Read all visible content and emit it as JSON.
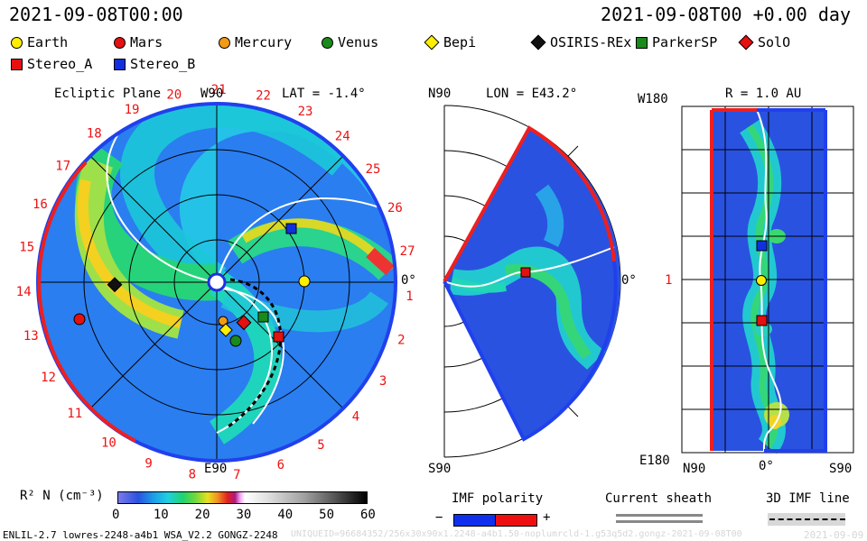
{
  "header": {
    "date_left": "2021-09-08T00:00",
    "date_right": "2021-09-08T00 +0.00 day"
  },
  "legend": [
    {
      "name": "Earth",
      "shape": "circle",
      "color": "#ffee00"
    },
    {
      "name": "Mars",
      "shape": "circle",
      "color": "#e51010"
    },
    {
      "name": "Mercury",
      "shape": "circle",
      "color": "#f29a14"
    },
    {
      "name": "Venus",
      "shape": "circle",
      "color": "#1a8a1a"
    },
    {
      "name": "Bepi",
      "shape": "diamond",
      "color": "#ffee00"
    },
    {
      "name": "OSIRIS-REx",
      "shape": "diamond",
      "color": "#111111"
    },
    {
      "name": "ParkerSP",
      "shape": "square",
      "color": "#1a8a1a"
    },
    {
      "name": "SolO",
      "shape": "diamond",
      "color": "#e51010"
    },
    {
      "name": "Stereo_A",
      "shape": "square",
      "color": "#e51010"
    },
    {
      "name": "Stereo_B",
      "shape": "square",
      "color": "#1030e0"
    }
  ],
  "panel1": {
    "title": "Ecliptic Plane",
    "top_label": "W90",
    "lat_label": "LAT = -1.4°",
    "bottom_label": "E90",
    "right_label": "0°",
    "carrington": [
      "1",
      "2",
      "3",
      "4",
      "5",
      "6",
      "7",
      "8",
      "9",
      "10",
      "11",
      "12",
      "13",
      "14",
      "15",
      "16",
      "17",
      "18",
      "19",
      "20",
      "21",
      "22",
      "23",
      "24",
      "25",
      "26",
      "27"
    ]
  },
  "panel2": {
    "top_left": "N90",
    "lon_label": "LON = E43.2°",
    "bottom_left": "S90",
    "right_label": "0°"
  },
  "panel3": {
    "top_left": "W180",
    "r_label": "R = 1.0 AU",
    "left_mid": "1",
    "bottom_left": "E180",
    "x_left": "N90",
    "x_mid": "0°",
    "x_right": "S90"
  },
  "colorbar": {
    "label": "R² N (cm⁻³)",
    "ticks": [
      "0",
      "10",
      "20",
      "30",
      "40",
      "50",
      "60"
    ]
  },
  "imf": {
    "label": "IMF polarity",
    "minus": "−",
    "plus": "+"
  },
  "sheath": {
    "label": "Current sheath"
  },
  "imf3d": {
    "label": "3D IMF line"
  },
  "footer": {
    "left": "ENLIL-2.7 lowres-2248-a4b1 WSA_V2.2 GONGZ-2248",
    "center": "UNIQUEID=96684352/256x30x90x1.2248-a4b1.50-noplumrcld-1.g53q5d2.gongz-2021-09-08T00",
    "right": "2021-09-09"
  }
}
